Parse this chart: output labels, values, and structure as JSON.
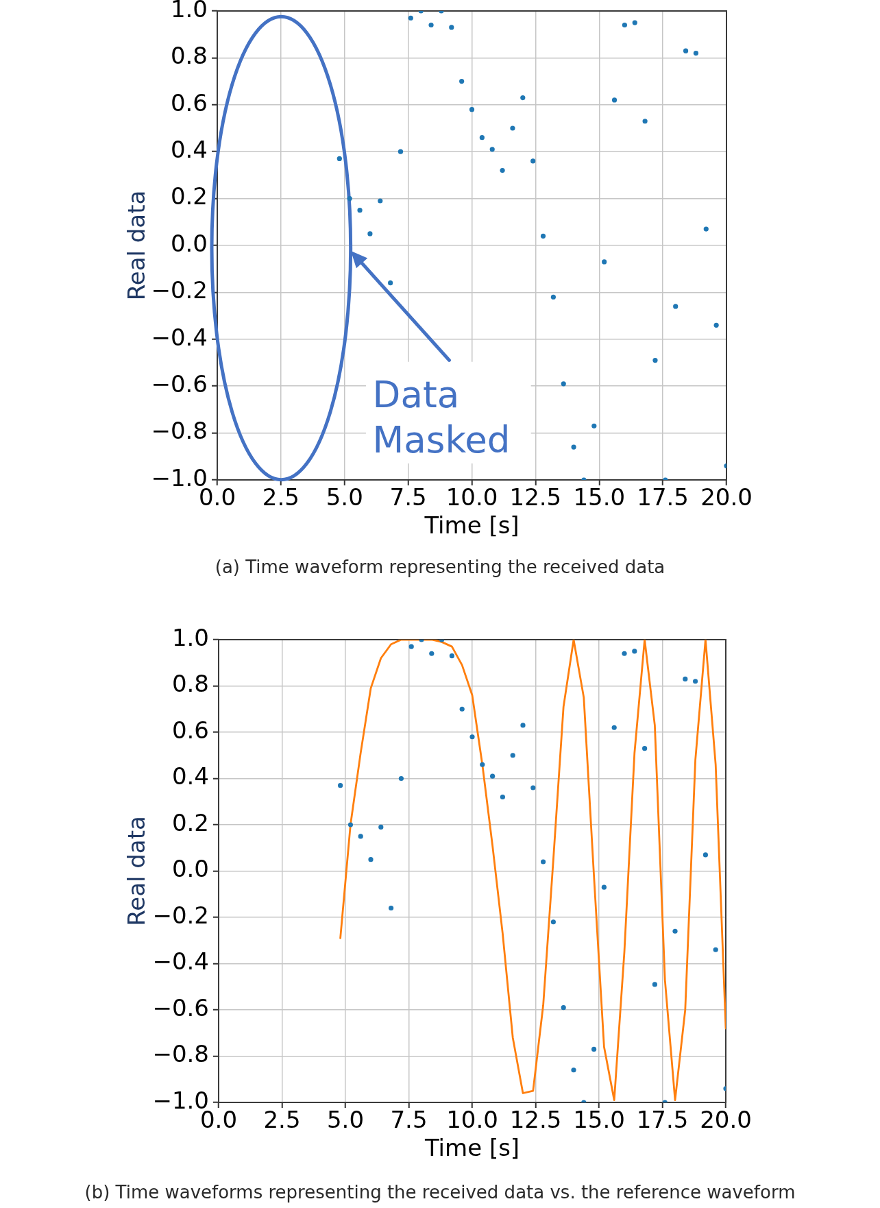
{
  "chart_data": [
    {
      "type": "scatter",
      "x": [
        4.8,
        5.2,
        5.6,
        6.0,
        6.4,
        6.8,
        7.2,
        7.6,
        8.0,
        8.4,
        8.8,
        9.2,
        9.6,
        10.0,
        10.4,
        10.8,
        11.2,
        11.6,
        12.0,
        12.4,
        12.8,
        13.2,
        13.6,
        14.0,
        14.4,
        14.8,
        15.2,
        15.6,
        16.0,
        16.4,
        16.8,
        17.2,
        17.6,
        18.0,
        18.4,
        18.8,
        19.2,
        19.6,
        20.0
      ],
      "series": [
        {
          "color": "#1f77b4",
          "values": [
            0.37,
            0.2,
            0.15,
            0.05,
            0.19,
            -0.16,
            0.4,
            0.97,
            1.0,
            0.94,
            1.0,
            0.93,
            0.7,
            0.58,
            0.46,
            0.41,
            0.32,
            0.5,
            0.63,
            0.36,
            0.04,
            -0.22,
            -0.59,
            -0.86,
            -1.0,
            -0.77,
            -0.07,
            0.62,
            0.94,
            0.95,
            0.53,
            -0.49,
            -1.0,
            -0.26,
            0.83,
            0.82,
            0.07,
            -0.34,
            -0.94
          ]
        }
      ],
      "marker": "circle",
      "xlim": [
        0,
        20
      ],
      "ylim": [
        -1,
        1
      ],
      "xticks": [
        {
          "value": 0,
          "label": "0.0"
        },
        2.5,
        {
          "value": 5,
          "label": "5.0"
        },
        7.5,
        {
          "value": 10,
          "label": "10.0"
        },
        12.5,
        {
          "value": 15,
          "label": "15.0"
        },
        17.5,
        {
          "value": 20,
          "label": "20.0"
        }
      ],
      "yticks": [
        {
          "value": -1,
          "label": "−1.0"
        },
        {
          "value": -0.8,
          "label": "−0.8"
        },
        {
          "value": -0.6,
          "label": "−0.6"
        },
        {
          "value": -0.4,
          "label": "−0.4"
        },
        {
          "value": -0.2,
          "label": "−0.2"
        },
        {
          "value": 0,
          "label": "0.0"
        },
        0.2,
        0.4,
        0.6,
        0.8,
        {
          "value": 1,
          "label": "1.0"
        }
      ],
      "xlabel": "Time [s]",
      "ylabel": "Real data",
      "grid": true,
      "annotations": [
        "Data Masked",
        "(a) Time waveform representing the received data"
      ]
    },
    {
      "type": "scatter",
      "x": [
        4.8,
        5.2,
        5.6,
        6.0,
        6.4,
        6.8,
        7.2,
        7.6,
        8.0,
        8.4,
        8.8,
        9.2,
        9.6,
        10.0,
        10.4,
        10.8,
        11.2,
        11.6,
        12.0,
        12.4,
        12.8,
        13.2,
        13.6,
        14.0,
        14.4,
        14.8,
        15.2,
        15.6,
        16.0,
        16.4,
        16.8,
        17.2,
        17.6,
        18.0,
        18.4,
        18.8,
        19.2,
        19.6,
        20.0
      ],
      "series": [
        {
          "color": "#1f77b4",
          "values": [
            0.37,
            0.2,
            0.15,
            0.05,
            0.19,
            -0.16,
            0.4,
            0.97,
            1.0,
            0.94,
            1.0,
            0.93,
            0.7,
            0.58,
            0.46,
            0.41,
            0.32,
            0.5,
            0.63,
            0.36,
            0.04,
            -0.22,
            -0.59,
            -0.86,
            -1.0,
            -0.77,
            -0.07,
            0.62,
            0.94,
            0.95,
            0.53,
            -0.49,
            -1.0,
            -0.26,
            0.83,
            0.82,
            0.07,
            -0.34,
            -0.94
          ]
        },
        {
          "type": "line",
          "marker": "none",
          "color": "#ff7f0e",
          "values": [
            -0.29,
            0.2,
            0.51,
            0.79,
            0.92,
            0.98,
            1.0,
            1.0,
            1.0,
            1.0,
            0.99,
            0.97,
            0.89,
            0.76,
            0.46,
            0.11,
            -0.27,
            -0.72,
            -0.96,
            -0.95,
            -0.58,
            0.05,
            0.71,
            1.0,
            0.75,
            -0.02,
            -0.76,
            -0.99,
            -0.35,
            0.51,
            1.0,
            0.63,
            -0.47,
            -0.99,
            -0.6,
            0.48,
            1.0,
            0.46,
            -0.68
          ]
        }
      ],
      "marker": "circle",
      "xlim": [
        0,
        20
      ],
      "ylim": [
        -1,
        1
      ],
      "xticks": [
        {
          "value": 0,
          "label": "0.0"
        },
        2.5,
        {
          "value": 5,
          "label": "5.0"
        },
        7.5,
        {
          "value": 10,
          "label": "10.0"
        },
        12.5,
        {
          "value": 15,
          "label": "15.0"
        },
        17.5,
        {
          "value": 20,
          "label": "20.0"
        }
      ],
      "yticks": [
        {
          "value": -1,
          "label": "−1.0"
        },
        {
          "value": -0.8,
          "label": "−0.8"
        },
        {
          "value": -0.6,
          "label": "−0.6"
        },
        {
          "value": -0.4,
          "label": "−0.4"
        },
        {
          "value": -0.2,
          "label": "−0.2"
        },
        {
          "value": 0,
          "label": "0.0"
        },
        0.2,
        0.4,
        0.6,
        0.8,
        {
          "value": 1,
          "label": "1.0"
        }
      ],
      "xlabel": "Time [s]",
      "ylabel": "Real data",
      "grid": true,
      "annotations": [
        "(b) Time waveforms representing the received data vs. the reference waveform"
      ]
    }
  ]
}
